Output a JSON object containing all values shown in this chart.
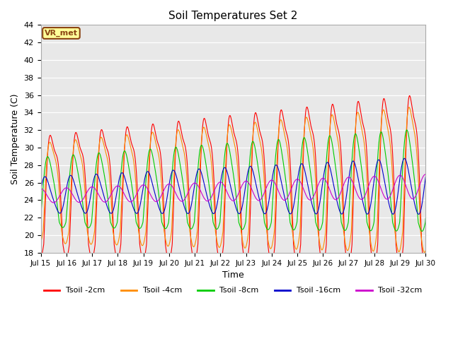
{
  "title": "Soil Temperatures Set 2",
  "xlabel": "Time",
  "ylabel": "Soil Temperature (C)",
  "ylim": [
    18,
    44
  ],
  "xlim_days": [
    0,
    15
  ],
  "xtick_labels": [
    "Jul 15",
    "Jul 16",
    "Jul 17",
    "Jul 18",
    "Jul 19",
    "Jul 20",
    "Jul 21",
    "Jul 22",
    "Jul 23",
    "Jul 24",
    "Jul 25",
    "Jul 26",
    "Jul 27",
    "Jul 28",
    "Jul 29",
    "Jul 30"
  ],
  "annotation": "VR_met",
  "bg_color": "#e8e8e8",
  "grid_color": "#ffffff",
  "colors": {
    "2cm": "#ff0000",
    "4cm": "#ff8c00",
    "8cm": "#00cc00",
    "16cm": "#0000cc",
    "32cm": "#cc00cc"
  },
  "legend_labels": [
    "Tsoil -2cm",
    "Tsoil -4cm",
    "Tsoil -8cm",
    "Tsoil -16cm",
    "Tsoil -32cm"
  ]
}
